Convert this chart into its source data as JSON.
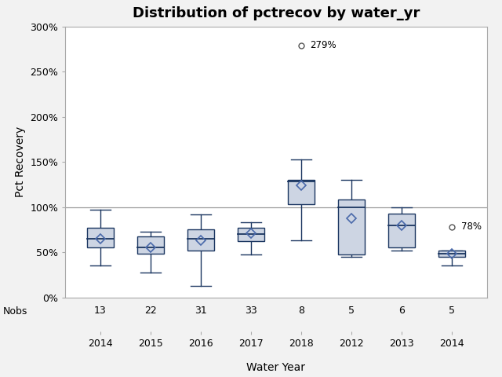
{
  "title": "Distribution of pctrecov by water_yr",
  "xlabel": "Water Year",
  "ylabel": "Pct Recovery",
  "categories": [
    "2014",
    "2015",
    "2016",
    "2017",
    "2018",
    "2012",
    "2013",
    "2014"
  ],
  "nobs": [
    13,
    22,
    31,
    33,
    8,
    5,
    6,
    5
  ],
  "box_data": [
    {
      "q1": 55,
      "median": 65,
      "q3": 77,
      "whisker_low": 35,
      "whisker_high": 97,
      "mean": 65,
      "outliers": []
    },
    {
      "q1": 48,
      "median": 55,
      "q3": 67,
      "whisker_low": 27,
      "whisker_high": 73,
      "mean": 55,
      "outliers": []
    },
    {
      "q1": 52,
      "median": 65,
      "q3": 75,
      "whisker_low": 13,
      "whisker_high": 92,
      "mean": 63,
      "outliers": []
    },
    {
      "q1": 62,
      "median": 70,
      "q3": 77,
      "whisker_low": 47,
      "whisker_high": 83,
      "mean": 71,
      "outliers": []
    },
    {
      "q1": 103,
      "median": 128,
      "q3": 130,
      "whisker_low": 63,
      "whisker_high": 153,
      "mean": 124,
      "outliers": [
        279
      ]
    },
    {
      "q1": 47,
      "median": 100,
      "q3": 108,
      "whisker_low": 45,
      "whisker_high": 130,
      "mean": 87,
      "outliers": []
    },
    {
      "q1": 55,
      "median": 80,
      "q3": 93,
      "whisker_low": 52,
      "whisker_high": 100,
      "mean": 80,
      "outliers": []
    },
    {
      "q1": 45,
      "median": 48,
      "q3": 52,
      "whisker_low": 35,
      "whisker_high": 52,
      "mean": 48,
      "outliers": [
        78
      ]
    }
  ],
  "box_fill_color": "#cdd5e3",
  "box_edge_color": "#1a3560",
  "median_color": "#1a3560",
  "whisker_color": "#1a3560",
  "flier_color": "#555555",
  "mean_marker_color": "#4a6aaa",
  "mean_marker_edge_color": "#1a3560",
  "ref_line_y": 100,
  "ref_line_color": "#999999",
  "ylim": [
    0,
    300
  ],
  "yticks": [
    0,
    50,
    100,
    150,
    200,
    250,
    300
  ],
  "ytick_labels": [
    "0%",
    "50%",
    "100%",
    "150%",
    "200%",
    "250%",
    "300%"
  ],
  "background_color": "#f2f2f2",
  "plot_bg_color": "#ffffff",
  "title_fontsize": 13,
  "axis_label_fontsize": 10
}
